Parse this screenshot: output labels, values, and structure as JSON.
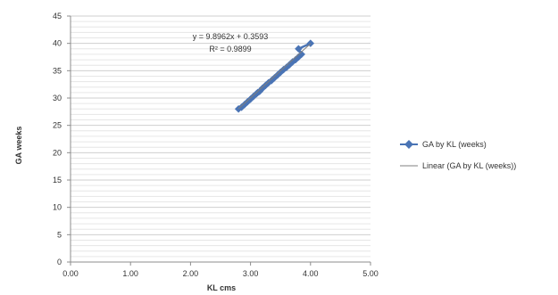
{
  "chart_data": {
    "type": "scatter",
    "xlabel": "KL cms",
    "ylabel": "GA weeks",
    "xlim": [
      0,
      5
    ],
    "ylim": [
      0,
      45
    ],
    "x_ticks": [
      "0.00",
      "1.00",
      "2.00",
      "3.00",
      "4.00",
      "5.00"
    ],
    "y_ticks": [
      "0",
      "5",
      "10",
      "15",
      "20",
      "25",
      "30",
      "35",
      "40",
      "45"
    ],
    "grid": true,
    "legend_position": "right",
    "series": [
      {
        "name": "GA by KL (weeks)",
        "color": "#4a74b5",
        "marker": "diamond",
        "points": [
          [
            2.8,
            28.0
          ],
          [
            2.85,
            28.3
          ],
          [
            2.9,
            28.8
          ],
          [
            2.95,
            29.3
          ],
          [
            3.0,
            29.8
          ],
          [
            3.05,
            30.3
          ],
          [
            3.1,
            30.8
          ],
          [
            3.12,
            31.0
          ],
          [
            3.15,
            31.2
          ],
          [
            3.2,
            31.8
          ],
          [
            3.25,
            32.3
          ],
          [
            3.3,
            32.8
          ],
          [
            3.35,
            33.2
          ],
          [
            3.4,
            33.7
          ],
          [
            3.45,
            34.2
          ],
          [
            3.5,
            34.7
          ],
          [
            3.55,
            35.2
          ],
          [
            3.6,
            35.6
          ],
          [
            3.65,
            36.1
          ],
          [
            3.7,
            36.6
          ],
          [
            3.75,
            37.0
          ],
          [
            3.8,
            37.5
          ],
          [
            3.85,
            38.0
          ],
          [
            3.8,
            39.0
          ],
          [
            4.0,
            40.0
          ]
        ]
      },
      {
        "name": "Linear (GA by KL (weeks))",
        "color": "#7f7f7f",
        "type": "trendline",
        "slope": 9.8962,
        "intercept": 0.3593,
        "x_range": [
          2.8,
          4.0
        ]
      }
    ],
    "annotations": {
      "equation": "y = 9.8962x + 0.3593",
      "r_squared": "R² = 0.9899"
    }
  }
}
